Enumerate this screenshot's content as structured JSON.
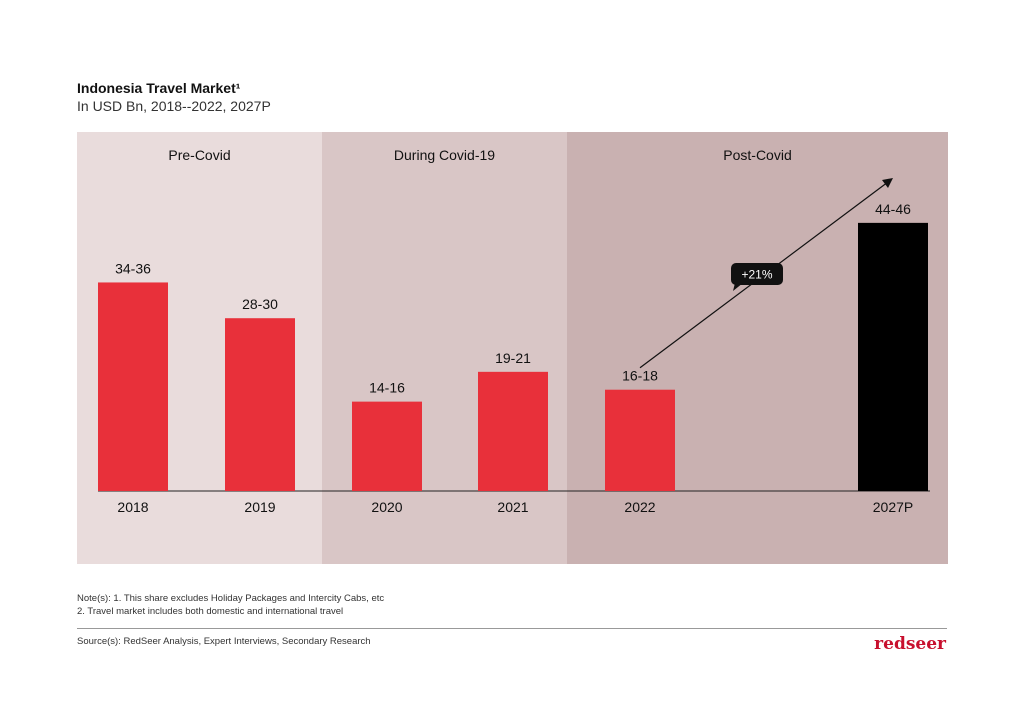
{
  "header": {
    "title": "Indonesia Travel Market¹",
    "subtitle": "In  USD Bn, 2018--2022, 2027P"
  },
  "chart_data": {
    "type": "bar",
    "categories": [
      "2018",
      "2019",
      "2020",
      "2021",
      "2022",
      "2027P"
    ],
    "values": [
      35,
      29,
      15,
      20,
      17,
      45
    ],
    "data_labels": [
      "34-36",
      "28-30",
      "14-16",
      "19-21",
      "16-18",
      "44-46"
    ],
    "phases": [
      {
        "label": "Pre-Covid",
        "categories": [
          "2018",
          "2019"
        ],
        "color": "#e9dcdc"
      },
      {
        "label": "During Covid-19",
        "categories": [
          "2020",
          "2021"
        ],
        "color": "#d9c6c6"
      },
      {
        "label": "Post-Covid",
        "categories": [
          "2022",
          "2027P"
        ],
        "color": "#c9b1b1"
      }
    ],
    "growth_annotation": {
      "label": "+21%",
      "from": "2022",
      "to": "2027P"
    },
    "colors": {
      "actual": "#e8303a",
      "projected": "#000000"
    },
    "ylim": [
      0,
      50
    ]
  },
  "footer": {
    "note_1": "Note(s): 1. This share excludes Holiday Packages and Intercity Cabs, etc",
    "note_2": "2. Travel market includes both domestic and international travel",
    "source": "Source(s): RedSeer Analysis, Expert Interviews, Secondary Research",
    "logo": "redseer"
  }
}
